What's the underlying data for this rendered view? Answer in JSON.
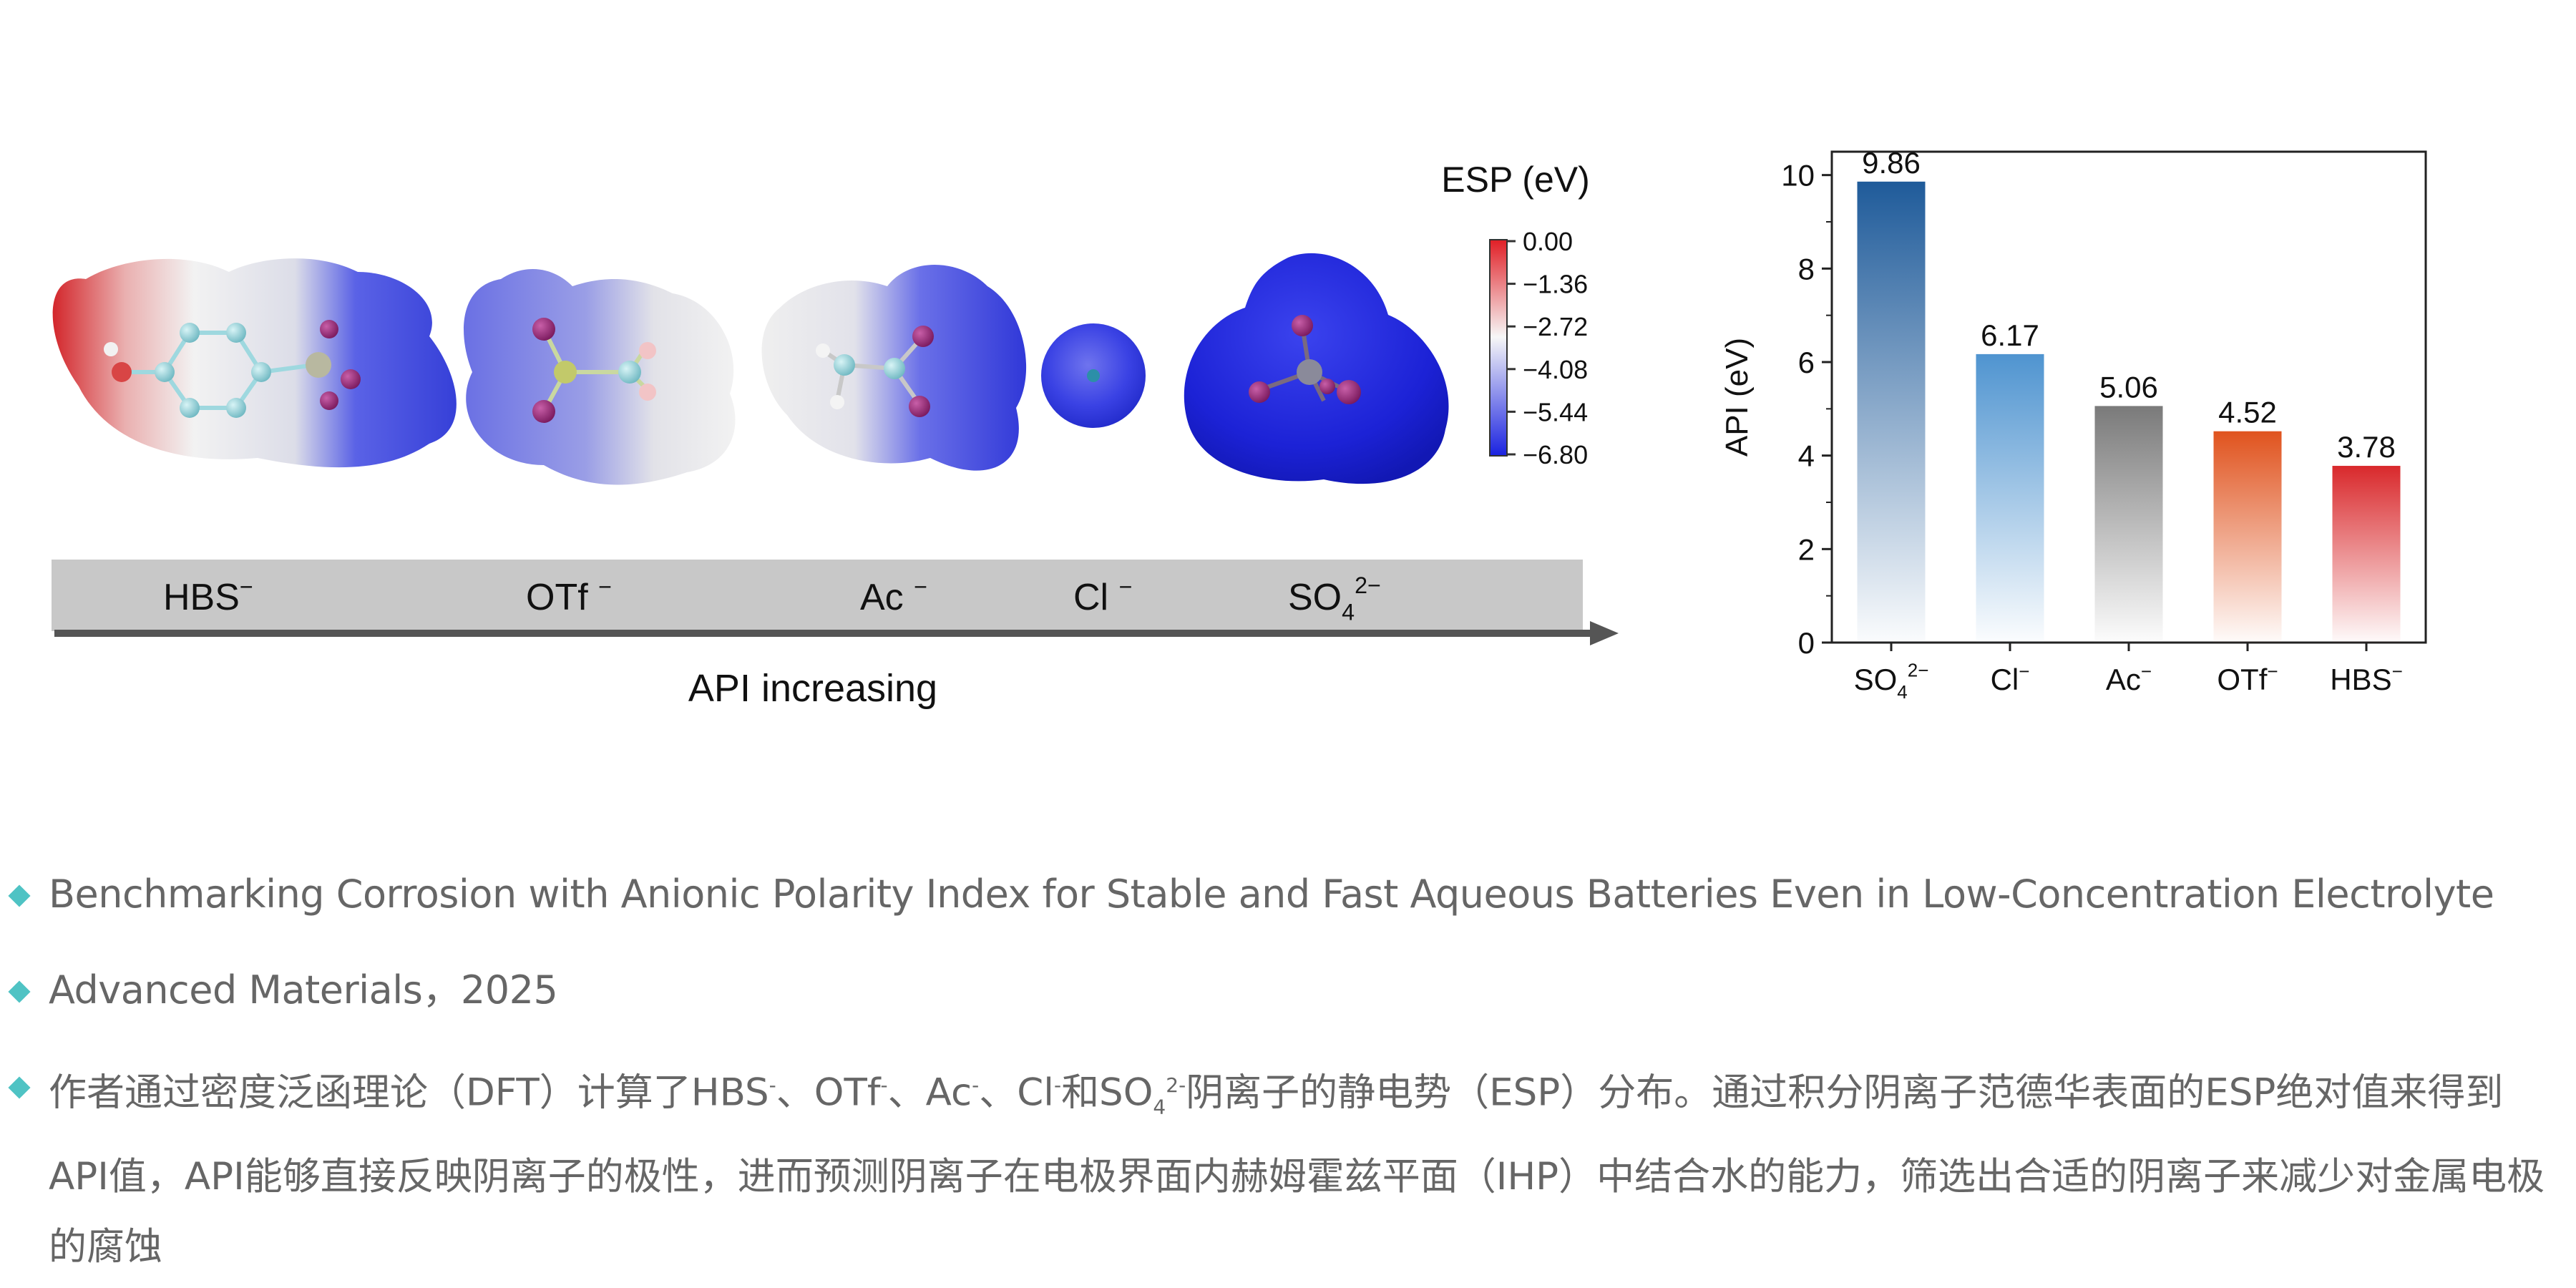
{
  "esp_figure": {
    "colorbar": {
      "title": "ESP (eV)",
      "ticks": [
        "0.00",
        "−1.36",
        "−2.72",
        "−4.08",
        "−5.44",
        "−6.80"
      ],
      "colors": [
        "#e01f26",
        "#f7f7f7",
        "#1a22e0"
      ]
    },
    "anion_labels": [
      {
        "base": "HBS",
        "sub": "",
        "sup": "−"
      },
      {
        "base": "OTf ",
        "sub": "",
        "sup": "−"
      },
      {
        "base": "Ac ",
        "sub": "",
        "sup": "−"
      },
      {
        "base": "Cl ",
        "sub": "",
        "sup": "−"
      },
      {
        "base": "SO",
        "sub": "4",
        "sup": "2−"
      }
    ],
    "arrow_label": "API increasing"
  },
  "chart_data": {
    "type": "bar",
    "categories": [
      {
        "base": "SO",
        "sub": "4",
        "sup": "2−"
      },
      {
        "base": "Cl",
        "sub": "",
        "sup": "−"
      },
      {
        "base": "Ac",
        "sub": "",
        "sup": "−"
      },
      {
        "base": "OTf",
        "sub": "",
        "sup": "−"
      },
      {
        "base": "HBS",
        "sub": "",
        "sup": "−"
      }
    ],
    "values": [
      9.86,
      6.17,
      5.06,
      4.52,
      3.78
    ],
    "value_labels": [
      "9.86",
      "6.17",
      "5.06",
      "4.52",
      "3.78"
    ],
    "colors": [
      "#1f5b9a",
      "#4f94d0",
      "#7a7a7a",
      "#e0531e",
      "#d9292c"
    ],
    "ylabel": "API (eV)",
    "ylim": [
      0,
      10.5
    ],
    "yticks": [
      "0",
      "2",
      "4",
      "6",
      "8",
      "10"
    ],
    "grid": false
  },
  "bullets": [
    {
      "text": "Benchmarking Corrosion with Anionic Polarity Index for Stable and Fast Aqueous Batteries Even in Low-Concentration Electrolyte"
    },
    {
      "text": "Advanced Materials，2025"
    }
  ],
  "description": {
    "part1": "作者通过密度泛函理论（DFT）计算了HBS",
    "sep1": "、OTf",
    "sep2": "、Ac",
    "sep3": "、Cl",
    "sep4": "和SO",
    "sub4": "4",
    "sup2": "2-",
    "minus": "-",
    "part2": "阴离子的静电势（ESP）分布。通过积分阴离子范德华表面的ESP绝对值来得到API值，API能够直接反映阴离子的极性，进而预测阴离子在电极界面内赫姆霍兹平面（IHP）中结合水的能力，筛选出合适的阴离子来减少对金属电极的腐蚀"
  },
  "accent_color": "#4fc3c4"
}
